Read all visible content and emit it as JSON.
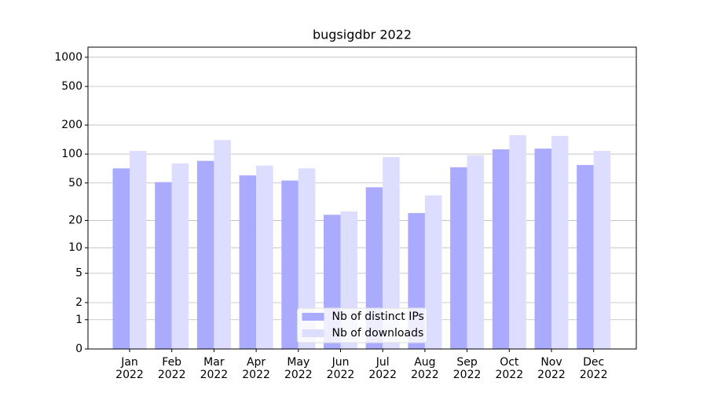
{
  "chart_data": {
    "type": "bar",
    "title": "bugsigdbr 2022",
    "categories": [
      "Jan\n2022",
      "Feb\n2022",
      "Mar\n2022",
      "Apr\n2022",
      "May\n2022",
      "Jun\n2022",
      "Jul\n2022",
      "Aug\n2022",
      "Sep\n2022",
      "Oct\n2022",
      "Nov\n2022",
      "Dec\n2022"
    ],
    "series": [
      {
        "name": "Nb of distinct IPs",
        "color": "#aaaaff",
        "values": [
          71,
          51,
          85,
          60,
          53,
          23,
          45,
          24,
          73,
          112,
          114,
          77
        ]
      },
      {
        "name": "Nb of downloads",
        "color": "#ddddff",
        "values": [
          108,
          80,
          140,
          76,
          71,
          25,
          93,
          37,
          97,
          157,
          154,
          108
        ]
      }
    ],
    "yscale": "log1p",
    "ylim": [
      0,
      1270
    ],
    "yticks": [
      0,
      1,
      2,
      5,
      10,
      20,
      50,
      100,
      200,
      500,
      1000
    ],
    "grid": true,
    "legend": "lower center"
  }
}
